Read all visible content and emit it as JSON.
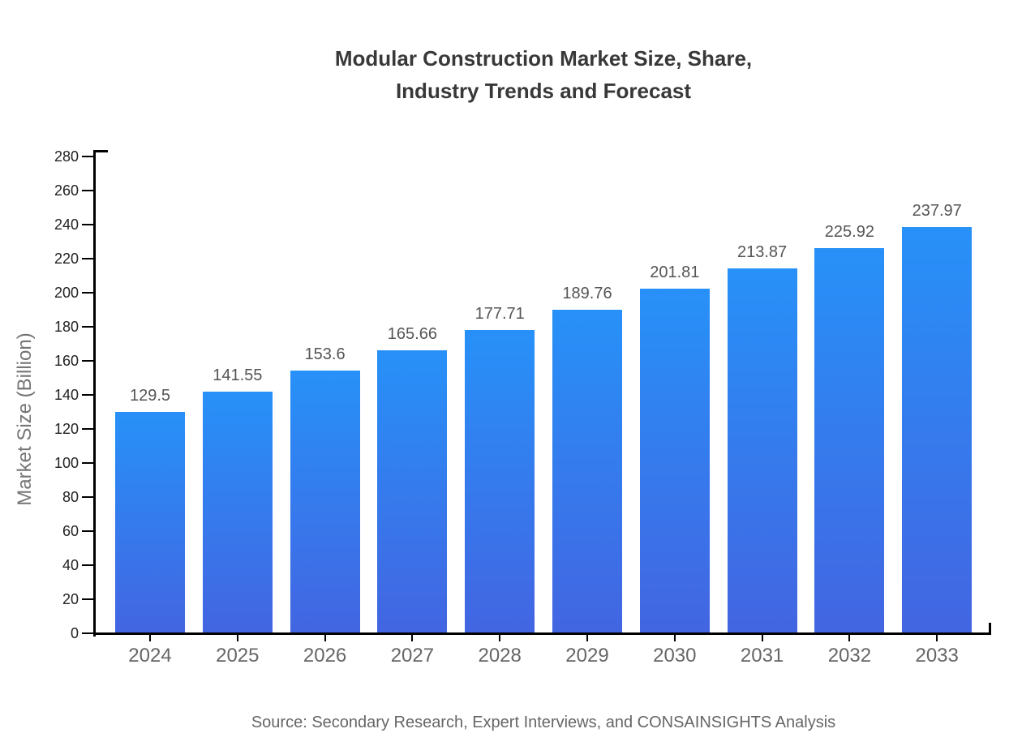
{
  "title": {
    "line1": "Modular Construction Market Size, Share,",
    "line2": "Industry Trends and Forecast"
  },
  "source": "Source: Secondary Research, Expert Interviews, and CONSAINSIGHTS Analysis",
  "chart_data": {
    "type": "bar",
    "title": "Modular Construction Market Size, Share, Industry Trends and Forecast",
    "categories": [
      "2024",
      "2025",
      "2026",
      "2027",
      "2028",
      "2029",
      "2030",
      "2031",
      "2032",
      "2033"
    ],
    "values": [
      129.5,
      141.55,
      153.6,
      165.66,
      177.71,
      189.76,
      201.81,
      213.87,
      225.92,
      237.97
    ],
    "value_labels": [
      "129.5",
      "141.55",
      "153.6",
      "165.66",
      "177.71",
      "189.76",
      "201.81",
      "213.87",
      "225.92",
      "237.97"
    ],
    "xlabel": "",
    "ylabel": "Market Size (Billion)",
    "ylim": [
      0,
      280
    ],
    "ytick_step": 20,
    "grid": false,
    "legend": false,
    "colors": {
      "bar_gradient_top": "#2791F8",
      "bar_gradient_bottom": "#4365E2",
      "axis": "#000000",
      "title_text": "#383838",
      "value_label_text": "#555555",
      "x_label_text": "#666666",
      "y_label_text": "#222222",
      "y_axis_title_text": "#757575",
      "source_text": "#666666"
    }
  }
}
